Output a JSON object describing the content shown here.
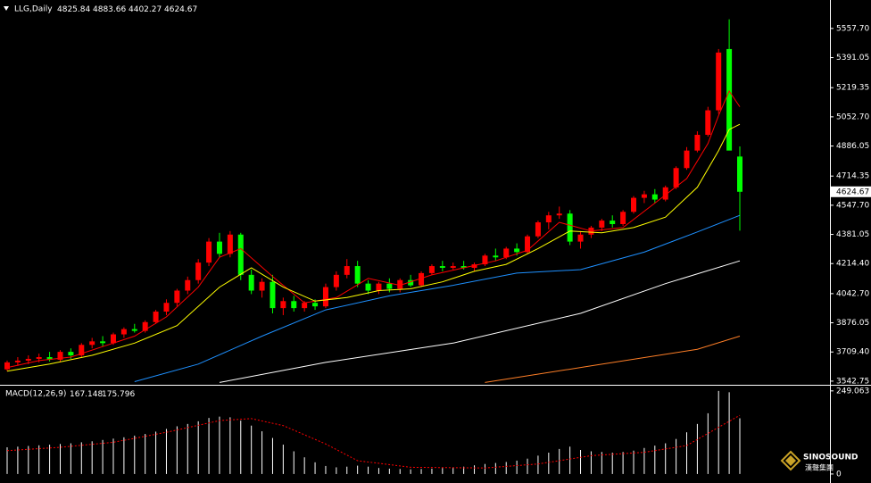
{
  "chart_data": [
    {
      "type": "candlestick",
      "title": "LLG,Daily",
      "watermark": "SINOSOUND",
      "watermark_sub": "漢聲集團",
      "ylim": [
        3527,
        5710
      ],
      "yticks": [
        {
          "value": 5557.7,
          "label": "5557.70"
        },
        {
          "value": 5391.05,
          "label": "5391.05"
        },
        {
          "value": 5219.35,
          "label": "5219.35"
        },
        {
          "value": 5052.7,
          "label": "5052.70"
        },
        {
          "value": 4886.05,
          "label": "4886.05"
        },
        {
          "value": 4714.35,
          "label": "4714.35"
        },
        {
          "value": 4547.7,
          "label": "4547.70"
        },
        {
          "value": 4381.05,
          "label": "4381.05"
        },
        {
          "value": 4214.4,
          "label": "4214.40"
        },
        {
          "value": 4042.7,
          "label": "4042.70"
        },
        {
          "value": 3876.05,
          "label": "3876.05"
        },
        {
          "value": 3709.4,
          "label": "3709.40"
        },
        {
          "value": 3542.75,
          "label": "3542.75"
        }
      ],
      "series": [
        {
          "type": "candlestick",
          "up_color": "#ff0000",
          "down_color": "#00ff00",
          "values": [
            [
              3610,
              3660,
              3600,
              3650
            ],
            [
              3650,
              3680,
              3630,
              3660
            ],
            [
              3660,
              3690,
              3640,
              3670
            ],
            [
              3670,
              3700,
              3650,
              3680
            ],
            [
              3680,
              3710,
              3655,
              3665
            ],
            [
              3665,
              3720,
              3650,
              3710
            ],
            [
              3710,
              3730,
              3670,
              3690
            ],
            [
              3690,
              3760,
              3680,
              3750
            ],
            [
              3750,
              3790,
              3730,
              3770
            ],
            [
              3770,
              3800,
              3740,
              3760
            ],
            [
              3760,
              3820,
              3750,
              3810
            ],
            [
              3810,
              3850,
              3790,
              3840
            ],
            [
              3840,
              3870,
              3820,
              3830
            ],
            [
              3830,
              3890,
              3820,
              3880
            ],
            [
              3880,
              3950,
              3870,
              3940
            ],
            [
              3940,
              4010,
              3920,
              3990
            ],
            [
              3990,
              4070,
              3970,
              4060
            ],
            [
              4060,
              4140,
              4040,
              4120
            ],
            [
              4120,
              4240,
              4100,
              4220
            ],
            [
              4220,
              4360,
              4200,
              4340
            ],
            [
              4340,
              4390,
              4250,
              4270
            ],
            [
              4270,
              4400,
              4250,
              4380
            ],
            [
              4380,
              4390,
              4120,
              4150
            ],
            [
              4150,
              4180,
              4040,
              4060
            ],
            [
              4060,
              4130,
              4020,
              4110
            ],
            [
              4110,
              4150,
              3930,
              3960
            ],
            [
              3960,
              4020,
              3920,
              4000
            ],
            [
              4000,
              4030,
              3940,
              3960
            ],
            [
              3960,
              4000,
              3940,
              3990
            ],
            [
              3990,
              4010,
              3950,
              3970
            ],
            [
              3970,
              4100,
              3960,
              4080
            ],
            [
              4080,
              4170,
              4060,
              4150
            ],
            [
              4150,
              4240,
              4130,
              4200
            ],
            [
              4200,
              4230,
              4080,
              4100
            ],
            [
              4100,
              4120,
              4040,
              4060
            ],
            [
              4060,
              4110,
              4040,
              4100
            ],
            [
              4100,
              4130,
              4050,
              4070
            ],
            [
              4070,
              4130,
              4050,
              4120
            ],
            [
              4120,
              4150,
              4080,
              4090
            ],
            [
              4090,
              4170,
              4080,
              4160
            ],
            [
              4160,
              4210,
              4150,
              4200
            ],
            [
              4200,
              4230,
              4170,
              4190
            ],
            [
              4190,
              4220,
              4180,
              4200
            ],
            [
              4200,
              4230,
              4180,
              4190
            ],
            [
              4190,
              4220,
              4170,
              4210
            ],
            [
              4210,
              4270,
              4200,
              4260
            ],
            [
              4260,
              4300,
              4230,
              4250
            ],
            [
              4250,
              4310,
              4240,
              4300
            ],
            [
              4300,
              4330,
              4260,
              4280
            ],
            [
              4280,
              4380,
              4270,
              4370
            ],
            [
              4370,
              4460,
              4360,
              4450
            ],
            [
              4450,
              4510,
              4410,
              4490
            ],
            [
              4490,
              4540,
              4470,
              4500
            ],
            [
              4500,
              4520,
              4320,
              4340
            ],
            [
              4340,
              4400,
              4300,
              4380
            ],
            [
              4380,
              4430,
              4360,
              4420
            ],
            [
              4420,
              4470,
              4400,
              4460
            ],
            [
              4460,
              4490,
              4420,
              4440
            ],
            [
              4440,
              4520,
              4430,
              4510
            ],
            [
              4510,
              4600,
              4500,
              4590
            ],
            [
              4590,
              4630,
              4560,
              4610
            ],
            [
              4610,
              4640,
              4560,
              4580
            ],
            [
              4580,
              4660,
              4570,
              4650
            ],
            [
              4650,
              4770,
              4640,
              4760
            ],
            [
              4760,
              4880,
              4750,
              4860
            ],
            [
              4860,
              4970,
              4850,
              4950
            ],
            [
              4950,
              5110,
              4940,
              5090
            ],
            [
              5090,
              5440,
              5070,
              5420
            ],
            [
              5440,
              5610,
              4870,
              4860
            ],
            [
              4825.84,
              4883.66,
              4402.27,
              4624.67
            ]
          ]
        },
        {
          "type": "line",
          "color": "#ff0000",
          "x": [
            0,
            3,
            6,
            9,
            12,
            15,
            18,
            20,
            22,
            25,
            28,
            31,
            34,
            37,
            40,
            43,
            46,
            49,
            52,
            55,
            58,
            61,
            64,
            66,
            67,
            68,
            69
          ],
          "values": [
            3620,
            3660,
            3680,
            3740,
            3800,
            3910,
            4080,
            4250,
            4300,
            4140,
            3990,
            4020,
            4130,
            4090,
            4150,
            4190,
            4230,
            4290,
            4450,
            4400,
            4420,
            4560,
            4700,
            4900,
            5060,
            5200,
            5110
          ]
        },
        {
          "type": "line",
          "color": "#ffff00",
          "x": [
            0,
            4,
            8,
            12,
            16,
            20,
            23,
            26,
            29,
            32,
            35,
            38,
            41,
            44,
            47,
            50,
            53,
            56,
            59,
            62,
            65,
            67,
            68,
            69
          ],
          "values": [
            3600,
            3640,
            3690,
            3760,
            3860,
            4080,
            4190,
            4080,
            4000,
            4020,
            4060,
            4070,
            4110,
            4170,
            4210,
            4300,
            4400,
            4390,
            4420,
            4480,
            4650,
            4860,
            4980,
            5010
          ]
        },
        {
          "type": "line",
          "color": "#1e90ff",
          "x": [
            12,
            18,
            24,
            30,
            36,
            42,
            48,
            54,
            60,
            65,
            69
          ],
          "values": [
            3540,
            3640,
            3800,
            3950,
            4030,
            4090,
            4160,
            4180,
            4280,
            4395,
            4490
          ]
        },
        {
          "type": "line",
          "color": "#ffffff",
          "x": [
            20,
            30,
            42,
            54,
            62,
            69
          ],
          "values": [
            3535,
            3650,
            3760,
            3930,
            4100,
            4230
          ]
        },
        {
          "type": "line",
          "color": "#ff7f27",
          "x": [
            45,
            55,
            65,
            69
          ],
          "values": [
            3535,
            3630,
            3725,
            3800
          ]
        }
      ]
    },
    {
      "type": "bar",
      "title": "MACD(12,26,9)",
      "ylim": [
        -27,
        262
      ],
      "yticks": [
        249.063,
        0
      ],
      "series": [
        {
          "type": "bar",
          "color": "#ffffff",
          "values": [
            80,
            82,
            84,
            86,
            88,
            90,
            92,
            95,
            98,
            102,
            106,
            110,
            115,
            120,
            127,
            135,
            143,
            150,
            158,
            168,
            172,
            170,
            160,
            145,
            128,
            108,
            88,
            68,
            50,
            35,
            24,
            20,
            22,
            25,
            22,
            18,
            16,
            15,
            14,
            15,
            16,
            18,
            20,
            22,
            26,
            30,
            33,
            36,
            40,
            46,
            55,
            64,
            75,
            82,
            72,
            68,
            66,
            64,
            66,
            70,
            78,
            85,
            92,
            105,
            125,
            150,
            182,
            249,
            245,
            167.148
          ]
        },
        {
          "type": "line",
          "color": "#ff0000",
          "dash": true,
          "x": [
            0,
            5,
            10,
            15,
            20,
            23,
            26,
            30,
            33,
            38,
            45,
            50,
            55,
            60,
            64,
            67,
            69
          ],
          "values": [
            70,
            80,
            95,
            125,
            160,
            166,
            145,
            90,
            40,
            20,
            18,
            30,
            55,
            65,
            85,
            140,
            175.796
          ]
        }
      ]
    }
  ]
}
